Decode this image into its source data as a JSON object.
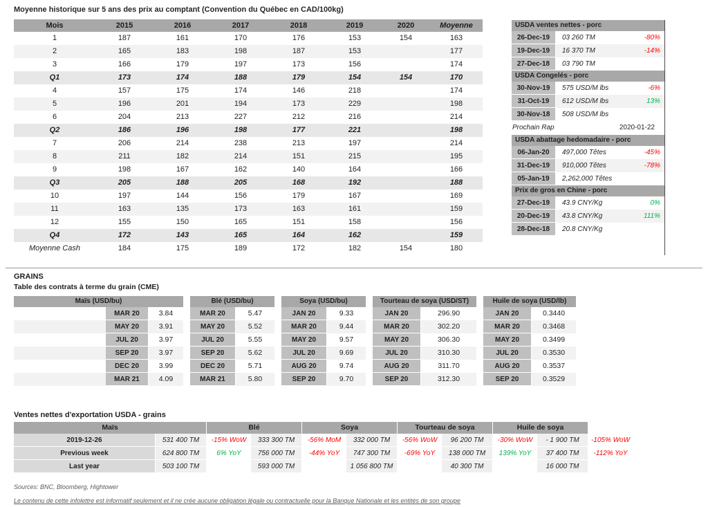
{
  "page": {
    "title": "Moyenne historique sur 5 ans des prix au comptant (Convention du Québec en CAD/100kg)"
  },
  "main_table": {
    "headers": [
      "Mois",
      "2015",
      "2016",
      "2017",
      "2018",
      "2019",
      "2020",
      "Moyenne"
    ],
    "rows": [
      {
        "type": "month",
        "cells": [
          "1",
          "187",
          "161",
          "170",
          "176",
          "153",
          "154",
          "163"
        ]
      },
      {
        "type": "month",
        "cells": [
          "2",
          "165",
          "183",
          "198",
          "187",
          "153",
          "",
          "177"
        ]
      },
      {
        "type": "month",
        "cells": [
          "3",
          "166",
          "179",
          "197",
          "173",
          "156",
          "",
          "174"
        ]
      },
      {
        "type": "quarter",
        "cells": [
          "Q1",
          "173",
          "174",
          "188",
          "179",
          "154",
          "154",
          "170"
        ]
      },
      {
        "type": "month",
        "cells": [
          "4",
          "157",
          "175",
          "174",
          "146",
          "218",
          "",
          "174"
        ]
      },
      {
        "type": "month",
        "cells": [
          "5",
          "196",
          "201",
          "194",
          "173",
          "229",
          "",
          "198"
        ]
      },
      {
        "type": "month",
        "cells": [
          "6",
          "204",
          "213",
          "227",
          "212",
          "216",
          "",
          "214"
        ]
      },
      {
        "type": "quarter",
        "cells": [
          "Q2",
          "186",
          "196",
          "198",
          "177",
          "221",
          "",
          "198"
        ]
      },
      {
        "type": "month",
        "cells": [
          "7",
          "206",
          "214",
          "238",
          "213",
          "197",
          "",
          "214"
        ]
      },
      {
        "type": "month",
        "cells": [
          "8",
          "211",
          "182",
          "214",
          "151",
          "215",
          "",
          "195"
        ]
      },
      {
        "type": "month",
        "cells": [
          "9",
          "198",
          "167",
          "162",
          "140",
          "164",
          "",
          "166"
        ]
      },
      {
        "type": "quarter",
        "cells": [
          "Q3",
          "205",
          "188",
          "205",
          "168",
          "192",
          "",
          "188"
        ]
      },
      {
        "type": "month",
        "cells": [
          "10",
          "197",
          "144",
          "156",
          "179",
          "167",
          "",
          "169"
        ]
      },
      {
        "type": "month",
        "cells": [
          "11",
          "163",
          "135",
          "173",
          "163",
          "161",
          "",
          "159"
        ]
      },
      {
        "type": "month",
        "cells": [
          "12",
          "155",
          "150",
          "165",
          "151",
          "158",
          "",
          "156"
        ]
      },
      {
        "type": "quarter",
        "cells": [
          "Q4",
          "172",
          "143",
          "165",
          "164",
          "162",
          "",
          "159"
        ]
      },
      {
        "type": "average",
        "cells": [
          "Moyenne Cash",
          "184",
          "175",
          "189",
          "172",
          "182",
          "154",
          "180"
        ]
      }
    ]
  },
  "side_panels": [
    {
      "title": "USDA ventes nettes - porc",
      "rows": [
        {
          "date": "26-Dec-19",
          "value": "03 260 TM",
          "pct": "-80%"
        },
        {
          "date": "19-Dec-19",
          "value": "16 370 TM",
          "pct": "-14%"
        },
        {
          "date": "27-Dec-18",
          "value": "03 790 TM",
          "pct": ""
        }
      ]
    },
    {
      "title": "USDA Congelés - porc",
      "rows": [
        {
          "date": "30-Nov-19",
          "value": "575 USD/M lbs",
          "pct": "-6%"
        },
        {
          "date": "31-Oct-19",
          "value": "612 USD/M lbs",
          "pct": "13%"
        },
        {
          "date": "30-Nov-18",
          "value": "508 USD/M lbs",
          "pct": ""
        }
      ]
    },
    {
      "title": "USDA abattage hedomadaire - porc",
      "rows": [
        {
          "date": "06-Jan-20",
          "value": "497,000 Têtes",
          "pct": "-45%"
        },
        {
          "date": "31-Dec-19",
          "value": "910,000 Têtes",
          "pct": "-78%"
        },
        {
          "date": "05-Jan-19",
          "value": "2,262,000 Têtes",
          "pct": ""
        }
      ]
    },
    {
      "title": "Prix de gros en Chine - porc",
      "rows": [
        {
          "date": "27-Dec-19",
          "value": "43.9 CNY/Kg",
          "pct": "0%"
        },
        {
          "date": "20-Dec-19",
          "value": "43.8 CNY/Kg",
          "pct": "111%"
        },
        {
          "date": "28-Dec-18",
          "value": "20.8 CNY/Kg",
          "pct": ""
        }
      ]
    }
  ],
  "next_report": {
    "label": "Prochain Rap",
    "date": "2020-01-22"
  },
  "grains": {
    "section_title": "GRAINS",
    "table_title": "Table des contrats à terme du grain (CME)",
    "contracts": [
      {
        "id": "mais",
        "title": "Maïs (USD/bu)",
        "rows": [
          [
            "MAR 20",
            "3.84"
          ],
          [
            "MAY 20",
            "3.91"
          ],
          [
            "JUL 20",
            "3.97"
          ],
          [
            "SEP 20",
            "3.97"
          ],
          [
            "DEC 20",
            "3.99"
          ],
          [
            "MAR 21",
            "4.09"
          ]
        ]
      },
      {
        "id": "ble",
        "title": "Blé (USD/bu)",
        "rows": [
          [
            "MAR 20",
            "5.47"
          ],
          [
            "MAY 20",
            "5.52"
          ],
          [
            "JUL 20",
            "5.55"
          ],
          [
            "SEP 20",
            "5.62"
          ],
          [
            "DEC 20",
            "5.71"
          ],
          [
            "MAR 21",
            "5.80"
          ]
        ]
      },
      {
        "id": "soya",
        "title": "Soya (USD/bu)",
        "rows": [
          [
            "JAN 20",
            "9.33"
          ],
          [
            "MAR 20",
            "9.44"
          ],
          [
            "MAY 20",
            "9.57"
          ],
          [
            "JUL 20",
            "9.69"
          ],
          [
            "AUG 20",
            "9.74"
          ],
          [
            "SEP 20",
            "9.70"
          ]
        ]
      },
      {
        "id": "tourteau",
        "title": "Tourteau de soya (USD/ST)",
        "rows": [
          [
            "JAN 20",
            "296.90"
          ],
          [
            "MAR 20",
            "302.20"
          ],
          [
            "MAY 20",
            "306.30"
          ],
          [
            "JUL 20",
            "310.30"
          ],
          [
            "AUG 20",
            "311.70"
          ],
          [
            "SEP 20",
            "312.30"
          ]
        ]
      },
      {
        "id": "huile",
        "title": "Huile de soya (USD/lb)",
        "rows": [
          [
            "JAN 20",
            "0.3440"
          ],
          [
            "MAR 20",
            "0.3468"
          ],
          [
            "MAY 20",
            "0.3499"
          ],
          [
            "JUL 20",
            "0.3530"
          ],
          [
            "AUG 20",
            "0.3537"
          ],
          [
            "SEP 20",
            "0.3529"
          ]
        ]
      }
    ]
  },
  "exports": {
    "title": "Ventes nettes d'exportation USDA - grains",
    "headers": [
      "Maïs",
      "Blé",
      "Soya",
      "Tourteau de soya",
      "Huile de soya"
    ],
    "rows": [
      {
        "label": "2019-12-26",
        "cells": [
          {
            "value": "531 400 TM",
            "pct": "-15% WoW"
          },
          {
            "value": "333 300 TM",
            "pct": "-56% MoM"
          },
          {
            "value": "332 000 TM",
            "pct": "-56% WoW"
          },
          {
            "value": "96 200 TM",
            "pct": "-30% WoW"
          },
          {
            "value": "- 1 900 TM",
            "pct": "-105% WoW"
          }
        ]
      },
      {
        "label": "Previous week",
        "cells": [
          {
            "value": "624 800 TM",
            "pct": "6% YoY"
          },
          {
            "value": "756 000 TM",
            "pct": "-44% YoY"
          },
          {
            "value": "747 300 TM",
            "pct": "-69% YoY"
          },
          {
            "value": "138 000 TM",
            "pct": "139% YoY"
          },
          {
            "value": "37 400 TM",
            "pct": "-112% YoY"
          }
        ]
      },
      {
        "label": "Last year",
        "cells": [
          {
            "value": "503 100 TM",
            "pct": ""
          },
          {
            "value": "593 000 TM",
            "pct": ""
          },
          {
            "value": "1 056 800 TM",
            "pct": ""
          },
          {
            "value": "40 300 TM",
            "pct": ""
          },
          {
            "value": "16 000 TM",
            "pct": ""
          }
        ]
      }
    ]
  },
  "footer": {
    "sources": "Sources: BNC, Bloomberg, Hightower",
    "disclaimer": "Le contenu de cette infolettre est informatif seulement et il ne crée aucune obligation légale ou contractuelle pour la Banque Nationale et les entités de son groupe"
  },
  "colors": {
    "negative": "#ff0000",
    "positive": "#00b050",
    "header_bar": "#a8a8a8",
    "label_cell": "#bfbfbf",
    "stripe": "#f2f2f2"
  }
}
